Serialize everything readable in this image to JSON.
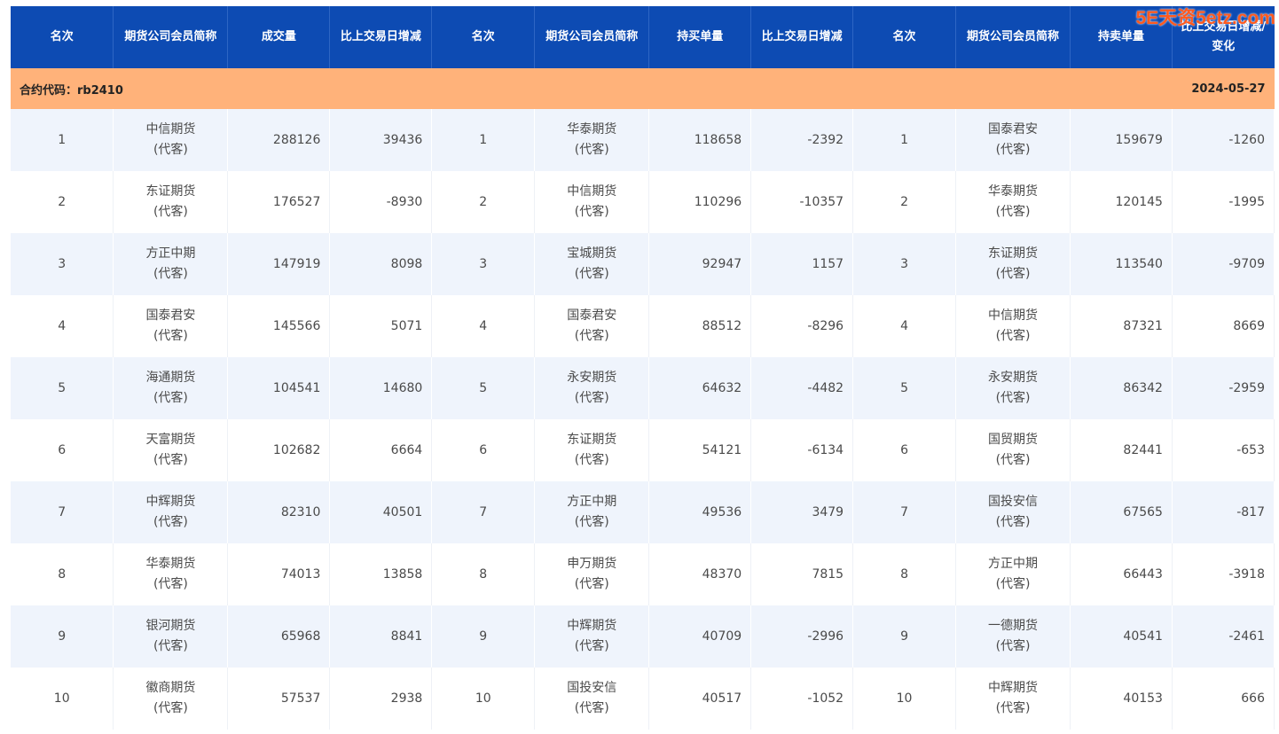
{
  "headers": [
    "名次",
    "期货公司会员简称",
    "成交量",
    "比上交易日增减",
    "名次",
    "期货公司会员简称",
    "持买单量",
    "比上交易日增减",
    "名次",
    "期货公司会员简称",
    "持卖单量",
    "比上交易日增减/变化"
  ],
  "contract": {
    "label": "合约代码：rb2410",
    "date": "2024-05-27"
  },
  "watermark": "5E天资5etz.com",
  "agency_note": "(代客)",
  "rows": [
    {
      "vol_rank": "1",
      "vol_name": "中信期货",
      "vol_note": "(代客)",
      "volume": "288126",
      "vol_change": "39436",
      "buy_rank": "1",
      "buy_name": "华泰期货",
      "buy_note": "(代客)",
      "buy_qty": "118658",
      "buy_change": "-2392",
      "sell_rank": "1",
      "sell_name": "国泰君安",
      "sell_note": "(代客)",
      "sell_qty": "159679",
      "sell_change": "-1260"
    },
    {
      "vol_rank": "2",
      "vol_name": "东证期货",
      "vol_note": "(代客)",
      "volume": "176527",
      "vol_change": "-8930",
      "buy_rank": "2",
      "buy_name": "中信期货",
      "buy_note": "(代客)",
      "buy_qty": "110296",
      "buy_change": "-10357",
      "sell_rank": "2",
      "sell_name": "华泰期货",
      "sell_note": "(代客)",
      "sell_qty": "120145",
      "sell_change": "-1995"
    },
    {
      "vol_rank": "3",
      "vol_name": "方正中期",
      "vol_note": "(代客)",
      "volume": "147919",
      "vol_change": "8098",
      "buy_rank": "3",
      "buy_name": "宝城期货",
      "buy_note": "(代客)",
      "buy_qty": "92947",
      "buy_change": "1157",
      "sell_rank": "3",
      "sell_name": "东证期货",
      "sell_note": "(代客)",
      "sell_qty": "113540",
      "sell_change": "-9709"
    },
    {
      "vol_rank": "4",
      "vol_name": "国泰君安",
      "vol_note": "(代客)",
      "volume": "145566",
      "vol_change": "5071",
      "buy_rank": "4",
      "buy_name": "国泰君安",
      "buy_note": "(代客)",
      "buy_qty": "88512",
      "buy_change": "-8296",
      "sell_rank": "4",
      "sell_name": "中信期货",
      "sell_note": "(代客)",
      "sell_qty": "87321",
      "sell_change": "8669"
    },
    {
      "vol_rank": "5",
      "vol_name": "海通期货",
      "vol_note": "(代客)",
      "volume": "104541",
      "vol_change": "14680",
      "buy_rank": "5",
      "buy_name": "永安期货",
      "buy_note": "(代客)",
      "buy_qty": "64632",
      "buy_change": "-4482",
      "sell_rank": "5",
      "sell_name": "永安期货",
      "sell_note": "(代客)",
      "sell_qty": "86342",
      "sell_change": "-2959"
    },
    {
      "vol_rank": "6",
      "vol_name": "天富期货",
      "vol_note": "(代客)",
      "volume": "102682",
      "vol_change": "6664",
      "buy_rank": "6",
      "buy_name": "东证期货",
      "buy_note": "(代客)",
      "buy_qty": "54121",
      "buy_change": "-6134",
      "sell_rank": "6",
      "sell_name": "国贸期货",
      "sell_note": "(代客)",
      "sell_qty": "82441",
      "sell_change": "-653"
    },
    {
      "vol_rank": "7",
      "vol_name": "中辉期货",
      "vol_note": "(代客)",
      "volume": "82310",
      "vol_change": "40501",
      "buy_rank": "7",
      "buy_name": "方正中期",
      "buy_note": "(代客)",
      "buy_qty": "49536",
      "buy_change": "3479",
      "sell_rank": "7",
      "sell_name": "国投安信",
      "sell_note": "(代客)",
      "sell_qty": "67565",
      "sell_change": "-817"
    },
    {
      "vol_rank": "8",
      "vol_name": "华泰期货",
      "vol_note": "(代客)",
      "volume": "74013",
      "vol_change": "13858",
      "buy_rank": "8",
      "buy_name": "申万期货",
      "buy_note": "(代客)",
      "buy_qty": "48370",
      "buy_change": "7815",
      "sell_rank": "8",
      "sell_name": "方正中期",
      "sell_note": "(代客)",
      "sell_qty": "66443",
      "sell_change": "-3918"
    },
    {
      "vol_rank": "9",
      "vol_name": "银河期货",
      "vol_note": "(代客)",
      "volume": "65968",
      "vol_change": "8841",
      "buy_rank": "9",
      "buy_name": "中辉期货",
      "buy_note": "(代客)",
      "buy_qty": "40709",
      "buy_change": "-2996",
      "sell_rank": "9",
      "sell_name": "一德期货",
      "sell_note": "(代客)",
      "sell_qty": "40541",
      "sell_change": "-2461"
    },
    {
      "vol_rank": "10",
      "vol_name": "徽商期货",
      "vol_note": "(代客)",
      "volume": "57537",
      "vol_change": "2938",
      "buy_rank": "10",
      "buy_name": "国投安信",
      "buy_note": "(代客)",
      "buy_qty": "40517",
      "buy_change": "-1052",
      "sell_rank": "10",
      "sell_name": "中辉期货",
      "sell_note": "(代客)",
      "sell_qty": "40153",
      "sell_change": "666"
    }
  ]
}
